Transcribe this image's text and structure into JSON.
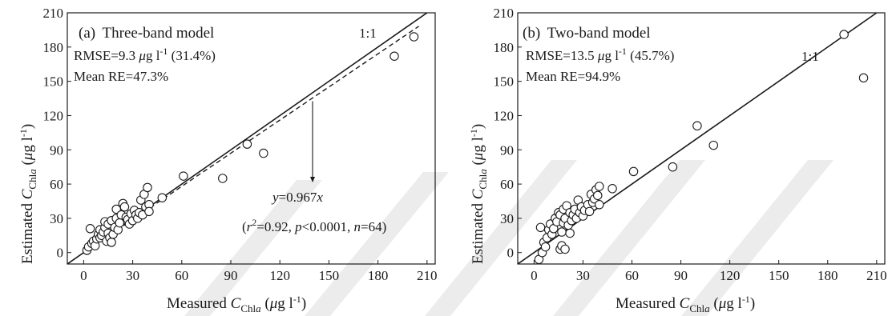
{
  "colors": {
    "axis": "#1a1a1a",
    "marker_fill": "#ffffff",
    "marker_stroke": "#1a1a1a",
    "watermark": "#ececec"
  },
  "chart_data": [
    {
      "type": "scatter",
      "panel_label": "(a)",
      "model": "Three-band model",
      "xlabel": "Measured C_Chla (μg l⁻¹)",
      "ylabel": "Estimated C_Chla (μg l⁻¹)",
      "xlim": [
        -10,
        215
      ],
      "ylim": [
        -10,
        210
      ],
      "x_ticks": [
        0,
        30,
        60,
        90,
        120,
        150,
        180,
        210
      ],
      "y_ticks": [
        0,
        30,
        60,
        90,
        120,
        150,
        180,
        210
      ],
      "stats": {
        "rmse_value": "9.3",
        "rmse_percent": "(31.4%)",
        "mean_re": "47.3%"
      },
      "identity_label": "1:1",
      "fit": {
        "slope": 0.967,
        "equation_value": "0.967",
        "r2": "0.92",
        "p": "0.0001",
        "n": "64"
      },
      "points": [
        [
          2,
          2
        ],
        [
          3,
          5
        ],
        [
          4,
          21
        ],
        [
          5,
          8
        ],
        [
          6,
          10
        ],
        [
          7,
          6
        ],
        [
          8,
          12
        ],
        [
          9,
          16
        ],
        [
          10,
          20
        ],
        [
          10,
          13
        ],
        [
          11,
          15
        ],
        [
          12,
          18
        ],
        [
          13,
          22
        ],
        [
          13,
          27
        ],
        [
          14,
          10
        ],
        [
          15,
          17
        ],
        [
          15,
          25
        ],
        [
          16,
          13
        ],
        [
          17,
          9
        ],
        [
          17,
          28
        ],
        [
          18,
          16
        ],
        [
          19,
          22
        ],
        [
          20,
          30
        ],
        [
          20,
          38
        ],
        [
          21,
          20
        ],
        [
          22,
          26
        ],
        [
          23,
          33
        ],
        [
          24,
          43
        ],
        [
          25,
          40
        ],
        [
          26,
          31
        ],
        [
          27,
          29
        ],
        [
          28,
          25
        ],
        [
          29,
          34
        ],
        [
          30,
          28
        ],
        [
          31,
          37
        ],
        [
          32,
          33
        ],
        [
          33,
          30
        ],
        [
          34,
          35
        ],
        [
          35,
          46
        ],
        [
          36,
          33
        ],
        [
          37,
          51
        ],
        [
          38,
          40
        ],
        [
          39,
          57
        ],
        [
          40,
          42
        ],
        [
          40,
          36
        ],
        [
          48,
          48
        ],
        [
          61,
          67
        ],
        [
          85,
          65
        ],
        [
          100,
          95
        ],
        [
          110,
          87
        ],
        [
          190,
          172
        ],
        [
          202,
          189
        ]
      ]
    },
    {
      "type": "scatter",
      "panel_label": "(b)",
      "model": "Two-band model",
      "xlabel": "Measured C_Chla (μg l⁻¹)",
      "ylabel": "Estimated C_Chla (μg l⁻¹)",
      "xlim": [
        -10,
        215
      ],
      "ylim": [
        -10,
        210
      ],
      "x_ticks": [
        0,
        30,
        60,
        90,
        120,
        150,
        180,
        210
      ],
      "y_ticks": [
        0,
        30,
        60,
        90,
        120,
        150,
        180,
        210
      ],
      "stats": {
        "rmse_value": "13.5",
        "rmse_percent": "(45.7%)",
        "mean_re": "94.9%"
      },
      "identity_label": "1:1",
      "points": [
        [
          3,
          -6
        ],
        [
          4,
          22
        ],
        [
          5,
          0
        ],
        [
          6,
          9
        ],
        [
          7,
          5
        ],
        [
          8,
          13
        ],
        [
          9,
          20
        ],
        [
          10,
          25
        ],
        [
          11,
          16
        ],
        [
          12,
          21
        ],
        [
          13,
          30
        ],
        [
          14,
          27
        ],
        [
          15,
          35
        ],
        [
          16,
          3
        ],
        [
          16,
          33
        ],
        [
          17,
          18
        ],
        [
          17,
          6
        ],
        [
          18,
          26
        ],
        [
          18,
          38
        ],
        [
          19,
          3
        ],
        [
          19,
          30
        ],
        [
          20,
          41
        ],
        [
          21,
          24
        ],
        [
          22,
          35
        ],
        [
          22,
          17
        ],
        [
          23,
          28
        ],
        [
          24,
          33
        ],
        [
          25,
          38
        ],
        [
          26,
          30
        ],
        [
          27,
          46
        ],
        [
          28,
          35
        ],
        [
          29,
          40
        ],
        [
          30,
          32
        ],
        [
          31,
          37
        ],
        [
          33,
          42
        ],
        [
          34,
          36
        ],
        [
          35,
          51
        ],
        [
          36,
          44
        ],
        [
          37,
          47
        ],
        [
          38,
          55
        ],
        [
          39,
          50
        ],
        [
          40,
          58
        ],
        [
          40,
          42
        ],
        [
          48,
          56
        ],
        [
          61,
          71
        ],
        [
          85,
          75
        ],
        [
          100,
          111
        ],
        [
          110,
          94
        ],
        [
          190,
          191
        ],
        [
          202,
          153
        ]
      ]
    }
  ]
}
